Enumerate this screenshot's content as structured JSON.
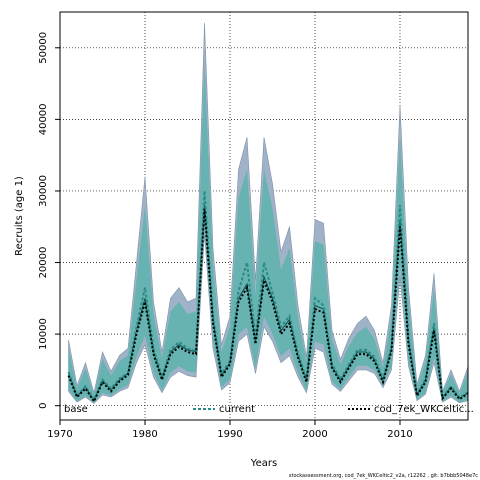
{
  "chart_data": {
    "type": "area",
    "xlabel": "Years",
    "ylabel": "Recruits (age 1)",
    "xlim": [
      1970,
      2018
    ],
    "ylim": [
      -2000,
      55000
    ],
    "xticks": [
      1970,
      1980,
      1990,
      2000,
      2010
    ],
    "yticks": [
      0,
      10000,
      20000,
      30000,
      40000,
      50000
    ],
    "grid": true,
    "legend_placement": "bottom",
    "x": [
      1971,
      1972,
      1973,
      1974,
      1975,
      1976,
      1977,
      1978,
      1979,
      1980,
      1981,
      1982,
      1983,
      1984,
      1985,
      1986,
      1987,
      1988,
      1989,
      1990,
      1991,
      1992,
      1993,
      1994,
      1995,
      1996,
      1997,
      1998,
      1999,
      2000,
      2001,
      2002,
      2003,
      2004,
      2005,
      2006,
      2007,
      2008,
      2009,
      2010,
      2011,
      2012,
      2013,
      2014,
      2015,
      2016,
      2017,
      2018
    ],
    "series": [
      {
        "name": "base",
        "style": "band",
        "color": "#9fb2c7",
        "lower": [
          2000,
          500,
          1200,
          300,
          1500,
          1200,
          2000,
          2500,
          6000,
          8500,
          4000,
          1800,
          4000,
          4800,
          4200,
          4000,
          24000,
          8000,
          2200,
          3200,
          9000,
          10000,
          4500,
          11000,
          9000,
          6000,
          7000,
          4000,
          1800,
          8000,
          7500,
          3000,
          2000,
          3500,
          5000,
          5000,
          4500,
          2500,
          5000,
          18000,
          5500,
          700,
          1600,
          6000,
          500,
          1200,
          400,
          700
        ],
        "mid": [
          4500,
          1300,
          2600,
          700,
          3500,
          2200,
          3600,
          4500,
          10500,
          15000,
          7500,
          3800,
          7500,
          8500,
          7800,
          7500,
          28000,
          12000,
          4200,
          6000,
          15000,
          17000,
          9000,
          18000,
          15000,
          10500,
          12000,
          7000,
          3500,
          14000,
          13500,
          5500,
          3500,
          5500,
          7500,
          7500,
          6500,
          3500,
          8000,
          26000,
          9000,
          1500,
          3500,
          11000,
          1100,
          2600,
          1000,
          1800
        ],
        "upper": [
          9200,
          2800,
          6000,
          1800,
          7500,
          4800,
          7000,
          8000,
          20000,
          32000,
          14500,
          7500,
          15000,
          16500,
          14500,
          15000,
          53500,
          22000,
          8500,
          12500,
          33000,
          37500,
          17500,
          37500,
          31000,
          21500,
          25000,
          14000,
          6800,
          26000,
          25500,
          10500,
          6500,
          9500,
          11500,
          12500,
          10500,
          6000,
          14000,
          42000,
          16500,
          3000,
          7000,
          18500,
          2000,
          5000,
          2000,
          5500
        ]
      },
      {
        "name": "current",
        "style": "dotted",
        "color": "#2a8a86",
        "values": [
          4700,
          1400,
          2700,
          800,
          3600,
          2400,
          3800,
          4600,
          11000,
          16500,
          8000,
          4000,
          7800,
          8900,
          8000,
          7600,
          30000,
          12500,
          4500,
          6200,
          16000,
          20000,
          9500,
          20000,
          15800,
          11000,
          12500,
          7300,
          3700,
          15000,
          14000,
          5800,
          3700,
          5800,
          7800,
          7800,
          6800,
          3700,
          8300,
          28000,
          9500,
          1600,
          3700,
          11500,
          1200,
          2700,
          1100,
          1900
        ]
      },
      {
        "name": "cod_7ek_WKCeltic...",
        "style": "dotted-dark",
        "color": "#000000",
        "values": [
          4200,
          1200,
          2400,
          600,
          3300,
          2000,
          3400,
          4300,
          10000,
          14500,
          7200,
          3600,
          7200,
          8200,
          7500,
          7200,
          27500,
          11500,
          4000,
          5800,
          14500,
          16500,
          8600,
          17500,
          14500,
          10000,
          11500,
          6700,
          3300,
          13500,
          13000,
          5300,
          3300,
          5300,
          7200,
          7200,
          6200,
          3300,
          7700,
          25000,
          8600,
          1400,
          3300,
          10500,
          1000,
          2400,
          900,
          1700
        ]
      }
    ],
    "inner_band": {
      "color": "#5fb3ae",
      "lower": [
        2300,
        600,
        1400,
        400,
        1800,
        1400,
        2300,
        2900,
        6800,
        9800,
        4600,
        2100,
        4600,
        5500,
        4800,
        4600,
        25000,
        9000,
        2600,
        3700,
        10000,
        11000,
        5200,
        12500,
        10000,
        6900,
        8000,
        4600,
        2100,
        9000,
        8500,
        3400,
        2300,
        4000,
        5600,
        5600,
        5000,
        2800,
        5600,
        20000,
        6200,
        800,
        1800,
        6800,
        600,
        1400,
        500,
        800
      ],
      "upper": [
        8000,
        2400,
        5200,
        1500,
        6500,
        4200,
        6200,
        7000,
        17500,
        28000,
        12800,
        6600,
        13200,
        14500,
        12800,
        13200,
        48000,
        19500,
        7500,
        11000,
        29000,
        33000,
        15500,
        33000,
        27500,
        19000,
        22000,
        12400,
        6000,
        23000,
        22500,
        9300,
        5800,
        8400,
        10200,
        11000,
        9300,
        5300,
        12400,
        37500,
        14600,
        2600,
        6200,
        16300,
        1800,
        4400,
        1700,
        4800
      ]
    },
    "footer": "stockassessment.org,  cod_7ek_WKCeltic2_v2a,  r12262 ,  git: b7bbb5048e7c"
  }
}
